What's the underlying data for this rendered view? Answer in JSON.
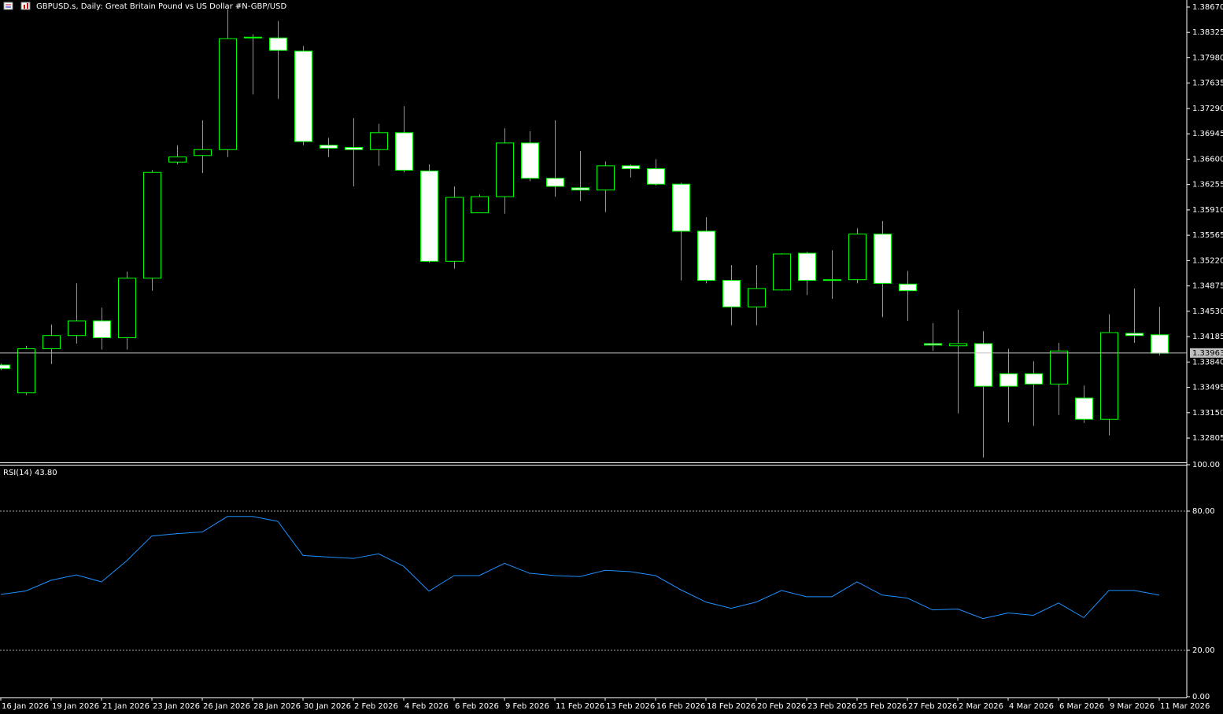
{
  "chart_data": [
    {
      "type": "candlestick",
      "title": "GBPUSD.s, Daily:  Great Britain Pound vs US Dollar #N-GBP/USD",
      "categories": [
        "16 Jan 2026",
        null,
        "19 Jan 2026",
        null,
        "21 Jan 2026",
        null,
        "23 Jan 2026",
        null,
        "26 Jan 2026",
        null,
        "28 Jan 2026",
        null,
        "30 Jan 2026",
        null,
        "2 Feb 2026",
        null,
        "4 Feb 2026",
        null,
        "6 Feb 2026",
        null,
        "9 Feb 2026",
        null,
        "11 Feb 2026",
        null,
        "13 Feb 2026",
        null,
        "16 Feb 2026",
        null,
        "18 Feb 2026",
        null,
        "20 Feb 2026",
        null,
        "23 Feb 2026",
        null,
        "25 Feb 2026",
        null,
        "27 Feb 2026",
        null,
        "2 Mar 2026",
        null,
        "4 Mar 2026",
        null,
        "6 Mar 2026",
        null,
        "9 Mar 2026",
        null,
        "11 Mar 2026"
      ],
      "open": [
        1.338,
        1.3342,
        1.3402,
        1.342,
        1.344,
        1.3417,
        1.3498,
        1.3656,
        1.3665,
        1.3673,
        1.3826,
        1.3825,
        1.3807,
        1.3679,
        1.3676,
        1.3673,
        1.3696,
        1.3644,
        1.3521,
        1.3587,
        1.3609,
        1.3682,
        1.3634,
        1.3621,
        1.3618,
        1.3651,
        1.3647,
        1.3626,
        1.3562,
        1.3495,
        1.3459,
        1.3482,
        1.3532,
        1.3495,
        1.3496,
        1.3558,
        1.349,
        1.3409,
        1.3406,
        1.3409,
        1.3368,
        1.3368,
        1.3354,
        1.3335,
        1.3306,
        1.3423,
        1.3421
      ],
      "high": [
        1.3382,
        1.3406,
        1.3435,
        1.3491,
        1.3458,
        1.3507,
        1.3645,
        1.3679,
        1.3713,
        1.3864,
        1.383,
        1.3848,
        1.3814,
        1.3689,
        1.3716,
        1.3708,
        1.3732,
        1.3653,
        1.3623,
        1.3612,
        1.3702,
        1.3698,
        1.3713,
        1.3671,
        1.3657,
        1.3653,
        1.366,
        1.3628,
        1.3581,
        1.3516,
        1.3516,
        1.3532,
        1.3534,
        1.3536,
        1.3566,
        1.3576,
        1.3508,
        1.3437,
        1.3455,
        1.3426,
        1.3402,
        1.3385,
        1.341,
        1.3352,
        1.3449,
        1.3484,
        1.3459
      ],
      "low": [
        1.3373,
        1.3339,
        1.3381,
        1.3409,
        1.3401,
        1.3401,
        1.3481,
        1.3653,
        1.3641,
        1.3663,
        1.3748,
        1.3742,
        1.3679,
        1.3663,
        1.3623,
        1.3651,
        1.3642,
        1.3519,
        1.3511,
        1.3587,
        1.3586,
        1.363,
        1.3609,
        1.3603,
        1.3588,
        1.3635,
        1.3624,
        1.3495,
        1.3491,
        1.3434,
        1.3434,
        1.3481,
        1.3475,
        1.347,
        1.3491,
        1.3445,
        1.344,
        1.3399,
        1.3314,
        1.3254,
        1.3302,
        1.3297,
        1.3312,
        1.3301,
        1.3284,
        1.341,
        1.3393
      ],
      "close": [
        1.3375,
        1.3402,
        1.342,
        1.344,
        1.3417,
        1.3498,
        1.3642,
        1.3663,
        1.3673,
        1.3824,
        1.3825,
        1.3808,
        1.3684,
        1.3675,
        1.3673,
        1.3696,
        1.3645,
        1.3521,
        1.3608,
        1.3609,
        1.3682,
        1.3634,
        1.3623,
        1.3618,
        1.3651,
        1.3647,
        1.3626,
        1.3562,
        1.3495,
        1.3459,
        1.3484,
        1.3531,
        1.3495,
        1.3496,
        1.3558,
        1.3491,
        1.3481,
        1.3407,
        1.3409,
        1.3351,
        1.3351,
        1.3354,
        1.3399,
        1.3306,
        1.3424,
        1.342,
        1.3396
      ],
      "up_color": "#000000",
      "down_color": "#ffffff",
      "line_color": "#00ff00",
      "last_price": 1.33963,
      "ylim": [
        1.32474,
        1.38766
      ],
      "yticks": [
        {
          "value": 1.3867,
          "label": "1.38670"
        },
        {
          "value": 1.38325,
          "label": "1.38325"
        },
        {
          "value": 1.3798,
          "label": "1.37980"
        },
        {
          "value": 1.37635,
          "label": "1.37635"
        },
        {
          "value": 1.3729,
          "label": "1.37290"
        },
        {
          "value": 1.36945,
          "label": "1.36945"
        },
        {
          "value": 1.366,
          "label": "1.36600"
        },
        {
          "value": 1.36255,
          "label": "1.36255"
        },
        {
          "value": 1.3591,
          "label": "1.35910"
        },
        {
          "value": 1.35565,
          "label": "1.35565"
        },
        {
          "value": 1.3522,
          "label": "1.35220"
        },
        {
          "value": 1.34875,
          "label": "1.34875"
        },
        {
          "value": 1.3453,
          "label": "1.34530"
        },
        {
          "value": 1.34185,
          "label": "1.34185"
        },
        {
          "value": 1.3384,
          "label": "1.33840"
        },
        {
          "value": 1.33495,
          "label": "1.33495"
        },
        {
          "value": 1.3315,
          "label": "1.33150"
        },
        {
          "value": 1.32805,
          "label": "1.32805"
        }
      ]
    },
    {
      "type": "line",
      "title": "RSI(14) 43.80",
      "color": "#1e90ff",
      "values": [
        44.1,
        45.6,
        50.2,
        52.5,
        49.5,
        58.6,
        69.3,
        70.3,
        71.0,
        77.7,
        77.7,
        75.6,
        60.9,
        60.2,
        59.6,
        61.6,
        56.2,
        45.5,
        52.2,
        52.2,
        57.5,
        53.2,
        52.2,
        51.8,
        54.5,
        53.9,
        52.2,
        46.1,
        40.8,
        38.1,
        40.8,
        45.8,
        43.1,
        43.1,
        49.5,
        43.8,
        42.5,
        37.4,
        37.8,
        33.7,
        36.1,
        35.1,
        40.4,
        34.1,
        45.8,
        45.8,
        43.8
      ],
      "ylim": [
        0,
        100
      ],
      "yticks": [
        {
          "value": 100,
          "label": "100.00"
        },
        {
          "value": 80,
          "label": "80.00"
        },
        {
          "value": 20,
          "label": "20.00"
        },
        {
          "value": 0,
          "label": "0.00"
        }
      ],
      "levels": [
        80,
        20
      ]
    }
  ]
}
